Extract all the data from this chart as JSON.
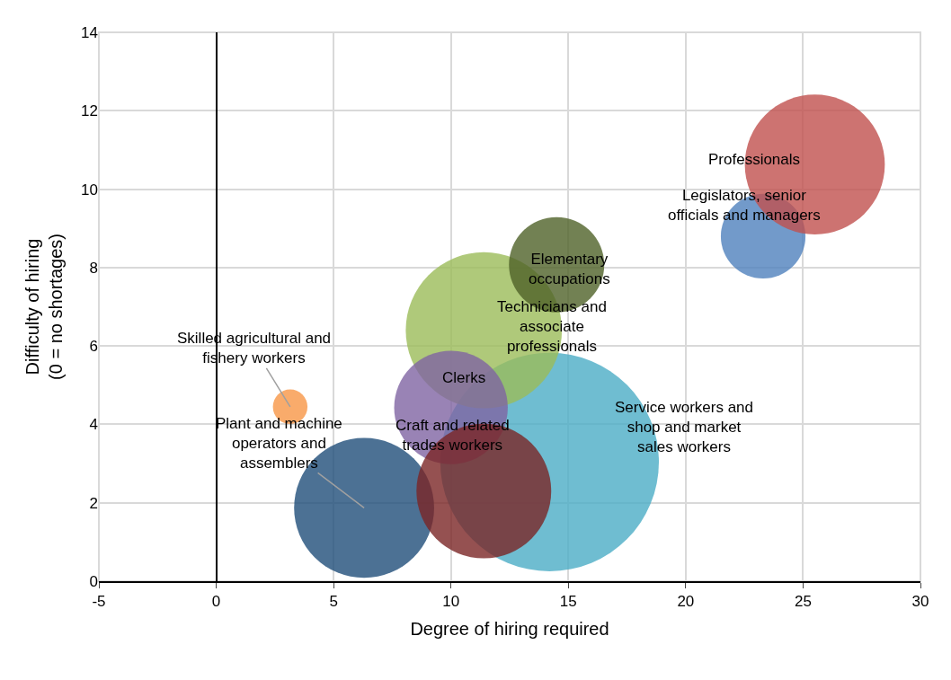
{
  "chart_data": {
    "type": "bubble",
    "xlabel": "Degree of hiring required",
    "ylabel": "Difficulty of hiring\n(0 = no shortages)",
    "xlim": [
      -5,
      30
    ],
    "xticks": [
      -5,
      0,
      5,
      10,
      15,
      20,
      25,
      30
    ],
    "ylim": [
      0,
      14
    ],
    "yticks": [
      0,
      2,
      4,
      6,
      8,
      10,
      12,
      14
    ],
    "grid": true,
    "relative": false,
    "series": [
      {
        "name": "Skilled agricultural and fishery workers",
        "color": "#f79646",
        "x": [
          3.15
        ],
        "values": [
          4.45
        ],
        "sizes": [
          0.025
        ]
      },
      {
        "name": "Plant and machine operators and assemblers",
        "color": "#1f4e79",
        "x": [
          6.3
        ],
        "values": [
          1.87
        ],
        "sizes": [
          0.41
        ]
      },
      {
        "name": "Service workers and shop and market sales workers",
        "color": "#4bacc6",
        "x": [
          14.2
        ],
        "values": [
          3.04
        ],
        "sizes": [
          1
        ]
      },
      {
        "name": "Technicians and associate professionals",
        "color": "#9bbb59",
        "x": [
          11.4
        ],
        "values": [
          6.4
        ],
        "sizes": [
          0.51
        ]
      },
      {
        "name": "Clerks",
        "color": "#8064a2",
        "x": [
          10.0
        ],
        "values": [
          4.43
        ],
        "sizes": [
          0.27
        ]
      },
      {
        "name": "Craft and related trades workers",
        "color": "#7b2526",
        "x": [
          11.4
        ],
        "values": [
          2.3
        ],
        "sizes": [
          0.38
        ]
      },
      {
        "name": "Elementary occupations",
        "color": "#4f6228",
        "x": [
          14.5
        ],
        "values": [
          8.07
        ],
        "sizes": [
          0.19
        ]
      },
      {
        "name": "Legislators, senior officials and managers",
        "color": "#4f81bd",
        "x": [
          23.3
        ],
        "values": [
          8.8
        ],
        "sizes": [
          0.15
        ]
      },
      {
        "name": "Professionals",
        "color": "#c0504d",
        "x": [
          25.5
        ],
        "values": [
          10.63
        ],
        "sizes": [
          0.41
        ]
      }
    ]
  }
}
